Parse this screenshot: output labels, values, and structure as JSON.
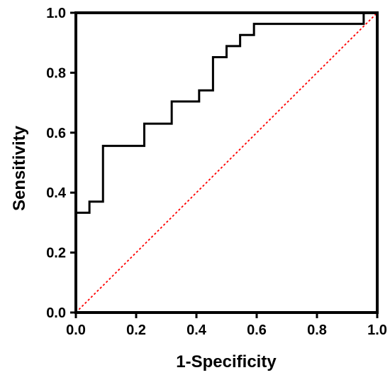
{
  "chart_data": {
    "type": "line",
    "title": "",
    "xlabel": "1-Specificity",
    "ylabel": "Sensitivity",
    "xlim": [
      0,
      1
    ],
    "ylim": [
      0,
      1
    ],
    "x_ticks": [
      0,
      0.2,
      0.4,
      0.6,
      0.8,
      1.0
    ],
    "y_ticks": [
      0,
      0.2,
      0.4,
      0.6,
      0.8,
      1.0
    ],
    "x_tick_labels": [
      "0.0",
      "0.2",
      "0.4",
      "0.6",
      "0.8",
      "1.0"
    ],
    "y_tick_labels": [
      "0.0",
      "0.2",
      "0.4",
      "0.6",
      "0.8",
      "1.0"
    ],
    "grid": false,
    "legend": "none",
    "series": [
      {
        "style": "step",
        "color": "#000000",
        "x": [
          0,
          0.045,
          0.045,
          0.09,
          0.09,
          0.227,
          0.227,
          0.318,
          0.318,
          0.409,
          0.409,
          0.455,
          0.455,
          0.5,
          0.5,
          0.545,
          0.545,
          0.591,
          0.591,
          0.955,
          0.955,
          1.0
        ],
        "y": [
          0.333,
          0.333,
          0.37,
          0.37,
          0.556,
          0.556,
          0.63,
          0.63,
          0.704,
          0.704,
          0.741,
          0.741,
          0.852,
          0.852,
          0.889,
          0.889,
          0.926,
          0.926,
          0.963,
          0.963,
          1.0,
          1.0
        ]
      },
      {
        "style": "dotted",
        "color": "#ff0000",
        "x": [
          0,
          1
        ],
        "y": [
          0,
          1
        ]
      }
    ]
  }
}
